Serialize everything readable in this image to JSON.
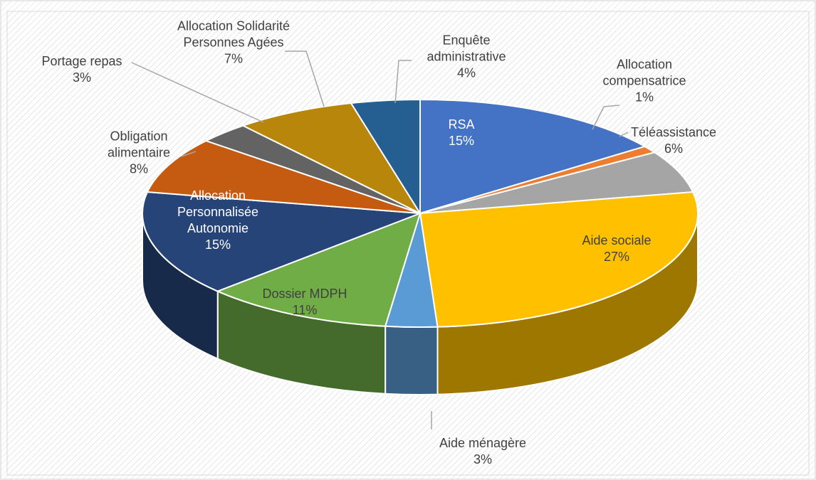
{
  "chart_data": {
    "type": "pie",
    "categories": [
      "RSA",
      "Allocation compensatrice",
      "Téléassistance",
      "Aide sociale",
      "Aide ménagère",
      "Dossier MDPH",
      "Allocation Personnalisée Autonomie",
      "Obligation alimentaire",
      "Portage repas",
      "Allocation Solidarité Personnes Agées",
      "Enquête administrative"
    ],
    "values": [
      15,
      1,
      6,
      27,
      3,
      11,
      15,
      8,
      3,
      7,
      4
    ],
    "value_labels": [
      "15%",
      "1%",
      "6%",
      "27%",
      "3%",
      "11%",
      "15%",
      "8%",
      "3%",
      "7%",
      "4%"
    ],
    "colors": [
      "#4472c4",
      "#ed7d31",
      "#a5a5a5",
      "#ffc000",
      "#5b9bd5",
      "#70ad47",
      "#264478",
      "#c55a11",
      "#636363",
      "#b8860b",
      "#255e91"
    ]
  }
}
